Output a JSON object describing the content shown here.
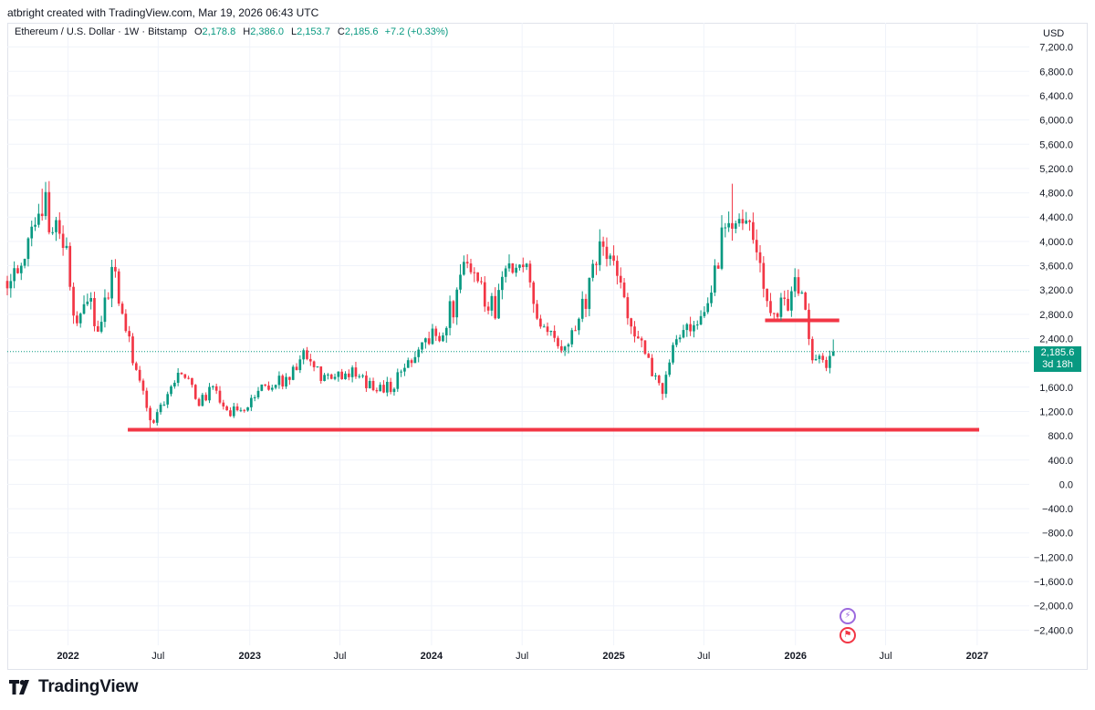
{
  "header": {
    "credit": "atbright created with TradingView.com, Mar 19, 2026 06:43 UTC"
  },
  "legend": {
    "symbol": "Ethereum / U.S. Dollar · 1W · Bitstamp",
    "open_label": "O",
    "open": "2,178.8",
    "high_label": "H",
    "high": "2,386.0",
    "low_label": "L",
    "low": "2,153.7",
    "close_label": "C",
    "close": "2,185.6",
    "change": "+7.2 (+0.33%)"
  },
  "price_tag": {
    "price": "2,185.6",
    "countdown": "3d 18h"
  },
  "axis": {
    "currency": "USD"
  },
  "brand": {
    "name": "TradingView"
  },
  "events": {
    "icon_1": "lightning-icon",
    "icon_2": "flag-icon"
  },
  "colors": {
    "up": "#089981",
    "down": "#f23645",
    "grid": "#f0f3fa",
    "level": "#f23645"
  },
  "chart_data": {
    "type": "candlestick",
    "title": "Ethereum / U.S. Dollar · 1W · Bitstamp",
    "xlabel": "",
    "ylabel": "USD",
    "ylim": [
      -2650,
      7600
    ],
    "y_ticks": [
      7200,
      6800,
      6400,
      6000,
      5600,
      5200,
      4800,
      4400,
      4000,
      3600,
      3200,
      2800,
      2400,
      2000,
      1600,
      1200,
      800,
      400,
      0,
      -400,
      -800,
      -1200,
      -1600,
      -2000,
      -2400
    ],
    "y_tick_labels": [
      "7,200.0",
      "6,800.0",
      "6,400.0",
      "6,000.0",
      "5,600.0",
      "5,200.0",
      "4,800.0",
      "4,400.0",
      "4,000.0",
      "3,600.0",
      "3,200.0",
      "2,800.0",
      "2,400.0",
      "2,000.0",
      "1,600.0",
      "1,200.0",
      "800.0",
      "400.0",
      "0.0",
      "−400.0",
      "−800.0",
      "−1,200.0",
      "−1,600.0",
      "−2,000.0",
      "−2,400.0"
    ],
    "x_range": [
      "2021-09-01",
      "2027-04-01"
    ],
    "x_ticks": [
      {
        "date": "2022-01-01",
        "label": "2022",
        "bold": true
      },
      {
        "date": "2022-07-01",
        "label": "Jul",
        "bold": false
      },
      {
        "date": "2023-01-01",
        "label": "2023",
        "bold": true
      },
      {
        "date": "2023-07-01",
        "label": "Jul",
        "bold": false
      },
      {
        "date": "2024-01-01",
        "label": "2024",
        "bold": true
      },
      {
        "date": "2024-07-01",
        "label": "Jul",
        "bold": false
      },
      {
        "date": "2025-01-01",
        "label": "2025",
        "bold": true
      },
      {
        "date": "2025-07-01",
        "label": "Jul",
        "bold": false
      },
      {
        "date": "2026-01-01",
        "label": "2026",
        "bold": true
      },
      {
        "date": "2026-07-01",
        "label": "Jul",
        "bold": false
      },
      {
        "date": "2027-01-01",
        "label": "2027",
        "bold": true
      }
    ],
    "current_price": 2185.6,
    "horizontal_levels": [
      {
        "value": 900,
        "from": "2022-05-01",
        "to": "2027-01-05"
      },
      {
        "value": 2700,
        "from": "2025-11-01",
        "to": "2026-03-30"
      }
    ],
    "close_path": [
      [
        "2021-09-01",
        3350
      ],
      [
        "2021-10-01",
        3500
      ],
      [
        "2021-11-10",
        4700
      ],
      [
        "2021-12-01",
        4300
      ],
      [
        "2021-12-25",
        4000
      ],
      [
        "2022-01-20",
        2500
      ],
      [
        "2022-02-10",
        3100
      ],
      [
        "2022-03-01",
        2600
      ],
      [
        "2022-04-01",
        3500
      ],
      [
        "2022-04-20",
        3000
      ],
      [
        "2022-05-12",
        2100
      ],
      [
        "2022-06-18",
        1000
      ],
      [
        "2022-07-25",
        1600
      ],
      [
        "2022-08-12",
        1950
      ],
      [
        "2022-09-20",
        1350
      ],
      [
        "2022-10-25",
        1600
      ],
      [
        "2022-11-10",
        1200
      ],
      [
        "2022-12-20",
        1200
      ],
      [
        "2023-01-20",
        1600
      ],
      [
        "2023-02-20",
        1650
      ],
      [
        "2023-03-25",
        1800
      ],
      [
        "2023-04-15",
        2100
      ],
      [
        "2023-05-20",
        1800
      ],
      [
        "2023-06-15",
        1700
      ],
      [
        "2023-07-15",
        1900
      ],
      [
        "2023-08-20",
        1650
      ],
      [
        "2023-09-20",
        1600
      ],
      [
        "2023-10-15",
        1600
      ],
      [
        "2023-11-10",
        2000
      ],
      [
        "2023-12-10",
        2300
      ],
      [
        "2024-01-15",
        2500
      ],
      [
        "2024-02-20",
        3000
      ],
      [
        "2024-03-12",
        3900
      ],
      [
        "2024-04-15",
        3100
      ],
      [
        "2024-05-10",
        2900
      ],
      [
        "2024-05-28",
        3800
      ],
      [
        "2024-06-20",
        3400
      ],
      [
        "2024-07-15",
        3500
      ],
      [
        "2024-08-05",
        2500
      ],
      [
        "2024-09-10",
        2300
      ],
      [
        "2024-10-10",
        2500
      ],
      [
        "2024-11-15",
        3300
      ],
      [
        "2024-12-10",
        3900
      ],
      [
        "2025-01-05",
        3500
      ],
      [
        "2025-02-05",
        2700
      ],
      [
        "2025-03-10",
        2000
      ],
      [
        "2025-04-10",
        1550
      ],
      [
        "2025-05-10",
        2500
      ],
      [
        "2025-06-15",
        2450
      ],
      [
        "2025-07-10",
        3000
      ],
      [
        "2025-08-20",
        4600
      ],
      [
        "2025-09-15",
        4300
      ],
      [
        "2025-10-10",
        4000
      ],
      [
        "2025-11-01",
        3100
      ],
      [
        "2025-12-01",
        2900
      ],
      [
        "2026-01-10",
        3300
      ],
      [
        "2026-02-05",
        2100
      ],
      [
        "2026-02-25",
        1950
      ],
      [
        "2026-03-19",
        2185.6
      ]
    ],
    "known_extremes": {
      "2021-11-10": 4870,
      "2022-06-18": 880,
      "2025-04-10": 1390,
      "2025-08-24": 4950
    }
  }
}
